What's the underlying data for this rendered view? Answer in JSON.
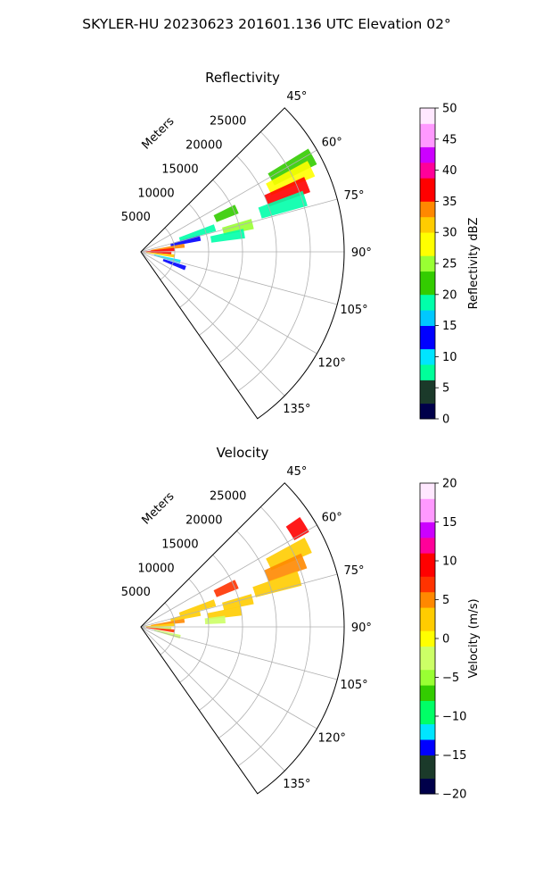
{
  "figure": {
    "title": "SKYLER-HU  20230623  201601.136 UTC Elevation 02°"
  },
  "chart_data": [
    {
      "type": "heatmap",
      "projection": "polar-sector",
      "title": "Reflectivity",
      "radial_label": "Meters",
      "radial_ticks": [
        5000,
        10000,
        15000,
        20000,
        25000
      ],
      "radial_tick_labels": [
        "5000",
        "10000",
        "15000",
        "20000",
        "25000"
      ],
      "radial_range": [
        0,
        30000
      ],
      "azimuth_range_deg": [
        45,
        145
      ],
      "azimuth_ticks": [
        45,
        60,
        75,
        90,
        105,
        120,
        135
      ],
      "azimuth_tick_labels": [
        "45°",
        "60°",
        "75°",
        "90°",
        "105°",
        "120°",
        "135°"
      ],
      "grid": true,
      "colorbar": {
        "label": "Reflectivity dBZ",
        "range": [
          0,
          50
        ],
        "ticks": [
          0,
          5,
          10,
          15,
          20,
          25,
          30,
          35,
          40,
          45,
          50
        ],
        "tick_labels": [
          "0",
          "5",
          "10",
          "15",
          "20",
          "25",
          "30",
          "35",
          "40",
          "45",
          "50"
        ],
        "palette": [
          "#00004a",
          "#1b3a2a",
          "#00ff9a",
          "#00e5ff",
          "#0000ff",
          "#00c8ff",
          "#00ffaa",
          "#33cc00",
          "#99ff33",
          "#ffff00",
          "#ffcc00",
          "#ff8800",
          "#ff0000",
          "#ff0099",
          "#cc00ff",
          "#ff99ff",
          "#ffe8ff"
        ]
      },
      "echoes": [
        {
          "az": 61,
          "r0": 22000,
          "r1": 29000,
          "value": 22
        },
        {
          "az": 64,
          "r0": 21000,
          "r1": 28000,
          "value": 28
        },
        {
          "az": 68,
          "r0": 20000,
          "r1": 26500,
          "value": 38
        },
        {
          "az": 72,
          "r0": 18500,
          "r1": 25500,
          "value": 20
        },
        {
          "az": 66,
          "r0": 12000,
          "r1": 15500,
          "value": 22
        },
        {
          "az": 76,
          "r0": 12500,
          "r1": 17000,
          "value": 24
        },
        {
          "az": 80,
          "r0": 10500,
          "r1": 15500,
          "value": 20
        },
        {
          "az": 72,
          "r0": 6000,
          "r1": 11500,
          "value": 18
        },
        {
          "az": 77,
          "r0": 4500,
          "r1": 9000,
          "value": 14
        },
        {
          "az": 82,
          "r0": 1500,
          "r1": 6500,
          "value": 34
        },
        {
          "az": 86,
          "r0": 500,
          "r1": 5000,
          "value": 38
        },
        {
          "az": 92,
          "r0": 500,
          "r1": 4500,
          "value": 36
        },
        {
          "az": 97,
          "r0": 800,
          "r1": 5000,
          "value": 30
        },
        {
          "az": 104,
          "r0": 2000,
          "r1": 6000,
          "value": 10
        },
        {
          "az": 110,
          "r0": 3500,
          "r1": 7000,
          "value": 12
        }
      ]
    },
    {
      "type": "heatmap",
      "projection": "polar-sector",
      "title": "Velocity",
      "radial_label": "Meters",
      "radial_ticks": [
        5000,
        10000,
        15000,
        20000,
        25000
      ],
      "radial_tick_labels": [
        "5000",
        "10000",
        "15000",
        "20000",
        "25000"
      ],
      "radial_range": [
        0,
        30000
      ],
      "azimuth_range_deg": [
        45,
        145
      ],
      "azimuth_ticks": [
        45,
        60,
        75,
        90,
        105,
        120,
        135
      ],
      "azimuth_tick_labels": [
        "45°",
        "60°",
        "75°",
        "90°",
        "105°",
        "120°",
        "135°"
      ],
      "grid": true,
      "colorbar": {
        "label": "Velocity (m/s)",
        "range": [
          -20,
          20
        ],
        "ticks": [
          -20,
          -15,
          -10,
          -5,
          0,
          5,
          10,
          15,
          20
        ],
        "tick_labels": [
          "−20",
          "−15",
          "−10",
          "−5",
          "0",
          "5",
          "10",
          "15",
          "20"
        ],
        "palette": [
          "#00004a",
          "#1b3a2a",
          "#0000ff",
          "#00e5ff",
          "#00ff66",
          "#33cc00",
          "#99ff33",
          "#ccff66",
          "#ffff00",
          "#ffcc00",
          "#ff8800",
          "#ff3300",
          "#ff0000",
          "#ff0099",
          "#cc00ff",
          "#ff99ff",
          "#ffe8ff"
        ]
      },
      "echoes": [
        {
          "az": 58,
          "r0": 26000,
          "r1": 28500,
          "value": 9
        },
        {
          "az": 64,
          "r0": 21000,
          "r1": 27500,
          "value": 3
        },
        {
          "az": 68,
          "r0": 20000,
          "r1": 26000,
          "value": 4
        },
        {
          "az": 73,
          "r0": 17500,
          "r1": 24500,
          "value": 2
        },
        {
          "az": 66,
          "r0": 12000,
          "r1": 15500,
          "value": 7
        },
        {
          "az": 76,
          "r0": 12500,
          "r1": 17000,
          "value": 2
        },
        {
          "az": 81,
          "r0": 10000,
          "r1": 15000,
          "value": 3
        },
        {
          "az": 85,
          "r0": 9500,
          "r1": 12500,
          "value": -3
        },
        {
          "az": 72,
          "r0": 6000,
          "r1": 11500,
          "value": 3
        },
        {
          "az": 77,
          "r0": 4500,
          "r1": 9000,
          "value": 2
        },
        {
          "az": 82,
          "r0": 1500,
          "r1": 6500,
          "value": 4
        },
        {
          "az": 86,
          "r0": 500,
          "r1": 5000,
          "value": 2
        },
        {
          "az": 92,
          "r0": 500,
          "r1": 4500,
          "value": -3
        },
        {
          "az": 97,
          "r0": 800,
          "r1": 5000,
          "value": 6
        },
        {
          "az": 104,
          "r0": 2000,
          "r1": 6000,
          "value": -2
        }
      ]
    }
  ]
}
